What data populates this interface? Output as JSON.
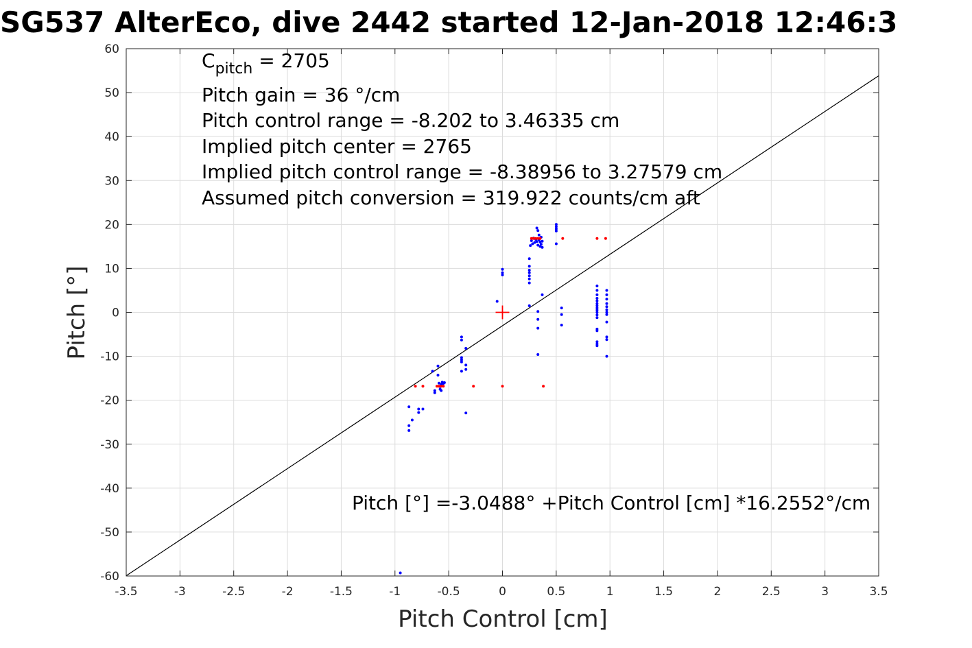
{
  "chart_data": {
    "type": "scatter",
    "title": "SG537 AlterEco, dive 2442 started 12-Jan-2018 12:46:3",
    "xlabel": "Pitch Control [cm]",
    "ylabel": "Pitch [°]",
    "xlim": [
      -3.5,
      3.5
    ],
    "ylim": [
      -60,
      60
    ],
    "grid": true,
    "xticks": [
      -3.5,
      -3,
      -2.5,
      -2,
      -1.5,
      -1,
      -0.5,
      0,
      0.5,
      1,
      1.5,
      2,
      2.5,
      3,
      3.5
    ],
    "xtick_labels": [
      "-3.5",
      "-3",
      "-2.5",
      "-2",
      "-1.5",
      "-1",
      "-0.5",
      "0",
      "0.5",
      "1",
      "1.5",
      "2",
      "2.5",
      "3",
      "3.5"
    ],
    "yticks": [
      60,
      50,
      40,
      30,
      20,
      10,
      0,
      -10,
      -20,
      -30,
      -40,
      -50,
      -60
    ],
    "ytick_labels": [
      "60",
      "50",
      "40",
      "30",
      "20",
      "10",
      "0",
      "-10",
      "-20",
      "-30",
      "-40",
      "-50",
      "-60"
    ],
    "annotations": {
      "c_pitch_base": "C",
      "c_pitch_sub": "pitch",
      "c_pitch_value": " = 2705",
      "pitch_gain": "Pitch gain = 36 °/cm",
      "control_range": "Pitch control range = -8.202 to 3.46335 cm",
      "implied_center": "Implied pitch center = 2765",
      "implied_range": "Implied pitch control range = -8.38956 to 3.27579 cm",
      "conversion": "Assumed pitch conversion = 319.922 counts/cm aft",
      "fit_equation": "Pitch [°] =-3.0488° +Pitch Control [cm] *16.2552°/cm"
    },
    "fit_line": {
      "intercept": -3.0488,
      "slope": 16.2552,
      "color": "#000000"
    },
    "center_marker": {
      "x": 0,
      "y": 0,
      "color": "#ff0000"
    },
    "series": [
      {
        "color": "#0000ff",
        "points": [
          [
            -0.95,
            -59.3
          ],
          [
            -0.87,
            -21.5
          ],
          [
            -0.87,
            -25.8
          ],
          [
            -0.87,
            -26.9
          ],
          [
            -0.84,
            -24.5
          ],
          [
            -0.78,
            -22.0
          ],
          [
            -0.78,
            -22.8
          ],
          [
            -0.74,
            -22.0
          ],
          [
            -0.65,
            -13.4
          ],
          [
            -0.63,
            -17.8
          ],
          [
            -0.63,
            -18.3
          ],
          [
            -0.6,
            -12.2
          ],
          [
            -0.6,
            -14.3
          ],
          [
            -0.59,
            -16.1
          ],
          [
            -0.58,
            -16.9
          ],
          [
            -0.58,
            -17.5
          ],
          [
            -0.57,
            -16.4
          ],
          [
            -0.56,
            -15.9
          ],
          [
            -0.55,
            -16.2
          ],
          [
            -0.54,
            -16.0
          ],
          [
            -0.57,
            -17.8
          ],
          [
            -0.38,
            -5.6
          ],
          [
            -0.38,
            -6.3
          ],
          [
            -0.38,
            -10.3
          ],
          [
            -0.38,
            -10.8
          ],
          [
            -0.38,
            -11.3
          ],
          [
            -0.38,
            -13.4
          ],
          [
            -0.34,
            -8.2
          ],
          [
            -0.34,
            -12.0
          ],
          [
            -0.34,
            -13.0
          ],
          [
            -0.34,
            -22.9
          ],
          [
            -0.05,
            2.5
          ],
          [
            0.0,
            9.8
          ],
          [
            0.0,
            9.0
          ],
          [
            0.0,
            8.5
          ],
          [
            0.25,
            12.2
          ],
          [
            0.25,
            10.5
          ],
          [
            0.25,
            9.6
          ],
          [
            0.25,
            9.0
          ],
          [
            0.25,
            8.3
          ],
          [
            0.25,
            7.6
          ],
          [
            0.25,
            6.7
          ],
          [
            0.25,
            1.5
          ],
          [
            0.26,
            15.2
          ],
          [
            0.27,
            16.3
          ],
          [
            0.28,
            15.6
          ],
          [
            0.29,
            16.9
          ],
          [
            0.3,
            15.9
          ],
          [
            0.31,
            16.6
          ],
          [
            0.32,
            19.2
          ],
          [
            0.32,
            16.1
          ],
          [
            0.33,
            15.3
          ],
          [
            0.33,
            18.6
          ],
          [
            0.34,
            17.6
          ],
          [
            0.34,
            16.5
          ],
          [
            0.35,
            15.0
          ],
          [
            0.35,
            16.0
          ],
          [
            0.36,
            15.5
          ],
          [
            0.36,
            17.1
          ],
          [
            0.37,
            16.2
          ],
          [
            0.37,
            14.8
          ],
          [
            0.33,
            0.2
          ],
          [
            0.33,
            -1.6
          ],
          [
            0.33,
            -3.6
          ],
          [
            0.33,
            -9.6
          ],
          [
            0.37,
            4.0
          ],
          [
            0.5,
            19.5
          ],
          [
            0.5,
            20.0
          ],
          [
            0.5,
            19.0
          ],
          [
            0.5,
            18.5
          ],
          [
            0.5,
            15.6
          ],
          [
            0.55,
            1.0
          ],
          [
            0.55,
            -0.5
          ],
          [
            0.55,
            -2.9
          ],
          [
            0.88,
            6.0
          ],
          [
            0.88,
            5.0
          ],
          [
            0.88,
            4.0
          ],
          [
            0.88,
            3.2
          ],
          [
            0.88,
            2.6
          ],
          [
            0.88,
            2.0
          ],
          [
            0.88,
            1.5
          ],
          [
            0.88,
            1.0
          ],
          [
            0.88,
            0.5
          ],
          [
            0.88,
            0.0
          ],
          [
            0.88,
            -0.6
          ],
          [
            0.88,
            -1.2
          ],
          [
            0.88,
            -3.8
          ],
          [
            0.88,
            -4.2
          ],
          [
            0.88,
            -6.7
          ],
          [
            0.88,
            -7.2
          ],
          [
            0.88,
            -7.6
          ],
          [
            0.97,
            5.0
          ],
          [
            0.97,
            4.0
          ],
          [
            0.97,
            3.0
          ],
          [
            0.97,
            2.0
          ],
          [
            0.97,
            1.3
          ],
          [
            0.97,
            0.6
          ],
          [
            0.97,
            0.0
          ],
          [
            0.97,
            -0.5
          ],
          [
            0.97,
            -2.2
          ],
          [
            0.97,
            -5.6
          ],
          [
            0.97,
            -6.2
          ],
          [
            0.97,
            -10.0
          ]
        ]
      },
      {
        "color": "#ff0000",
        "points": [
          [
            -0.81,
            -16.8
          ],
          [
            -0.74,
            -16.8
          ],
          [
            -0.61,
            -16.8
          ],
          [
            -0.59,
            -16.8
          ],
          [
            -0.57,
            -16.8
          ],
          [
            -0.55,
            -16.8
          ],
          [
            -0.27,
            -16.8
          ],
          [
            0.0,
            -16.8
          ],
          [
            0.38,
            -16.8
          ],
          [
            0.27,
            16.8
          ],
          [
            0.29,
            16.8
          ],
          [
            0.31,
            16.8
          ],
          [
            0.33,
            16.8
          ],
          [
            0.35,
            16.8
          ],
          [
            0.56,
            16.8
          ],
          [
            0.88,
            16.8
          ],
          [
            0.96,
            16.8
          ]
        ]
      }
    ]
  }
}
